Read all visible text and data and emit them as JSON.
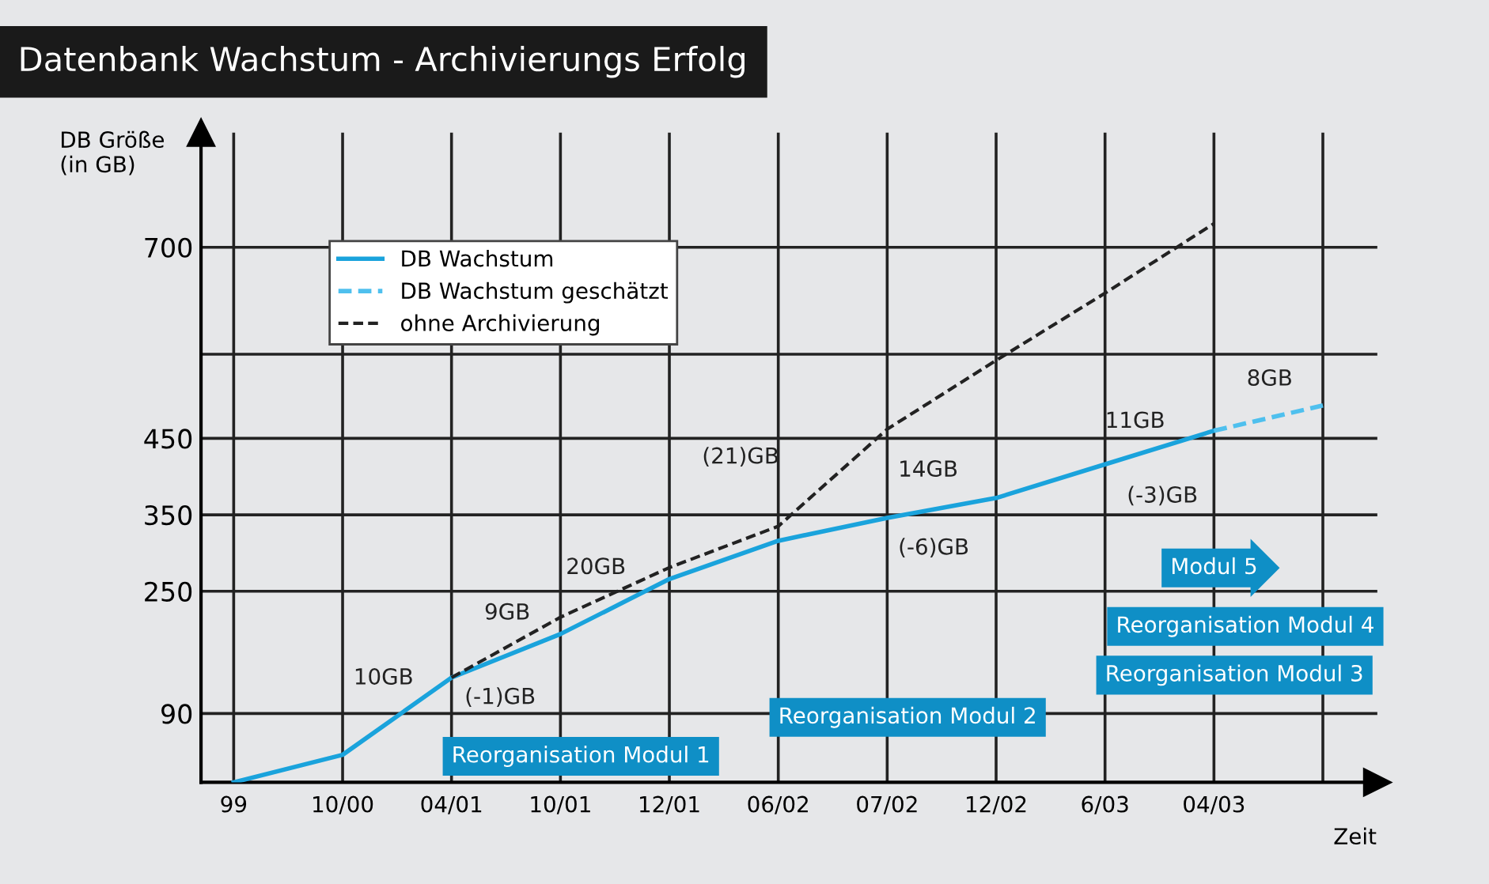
{
  "chart_data": {
    "type": "line",
    "title": "Datenbank Wachstum - Archivierungs Erfolg",
    "xlabel": "Zeit",
    "ylabel": "DB Größe\n(in GB)",
    "categories": [
      "99",
      "10/00",
      "04/01",
      "10/01",
      "12/01",
      "06/02",
      "07/02",
      "12/02",
      "6/03",
      "04/03",
      null
    ],
    "series": [
      {
        "name": "DB Wachstum",
        "color": "#1aa3dc",
        "line_style": "solid",
        "values": [
          0,
          36,
          137,
          194,
          266,
          316,
          346,
          372,
          416,
          460,
          null
        ]
      },
      {
        "name": "DB Wachstum geschätzt",
        "color": "#4fc0ee",
        "line_style": "dashed",
        "values": [
          null,
          null,
          null,
          null,
          null,
          null,
          null,
          null,
          null,
          460,
          493
        ]
      },
      {
        "name": "ohne Archivierung",
        "color": "#222222",
        "line_style": "dashed",
        "values": [
          null,
          null,
          137,
          216,
          281,
          335,
          462,
          552,
          640,
          731,
          null
        ]
      }
    ],
    "ylim": [
      0,
      850
    ],
    "yticks": [
      90,
      250,
      350,
      450,
      {
        "value": 560,
        "label": null
      },
      700
    ],
    "grid": true,
    "legend": "top left",
    "marker": "none",
    "annotations": [
      "10GB",
      "9GB",
      "(-1)GB",
      "20GB",
      "(21)GB",
      "14GB",
      "(-6)GB",
      "11GB",
      "(-3)GB",
      "8GB",
      "Reorganisation Modul 1",
      "Reorganisation Modul 2",
      "Reorganisation Modul 3",
      "Reorganisation Modul 4",
      "Modul 5"
    ]
  }
}
